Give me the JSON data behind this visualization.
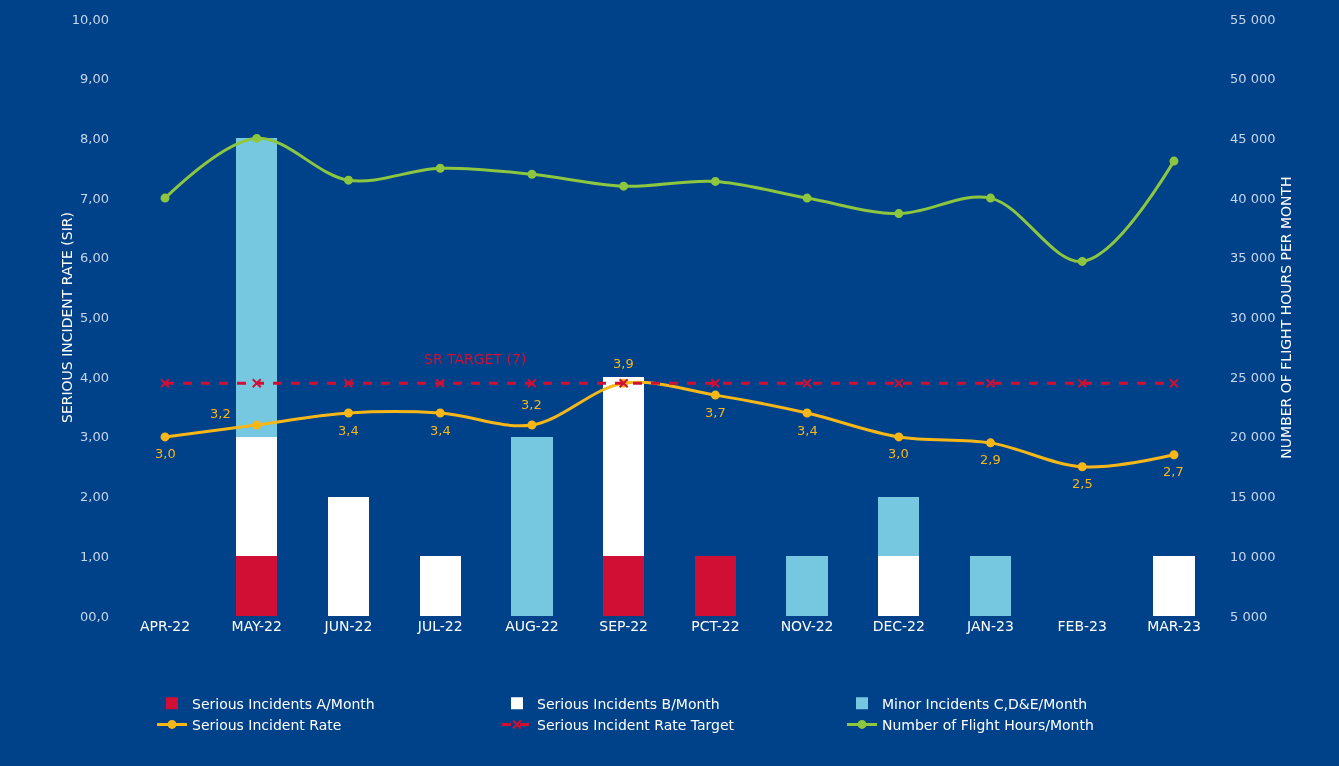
{
  "chart_data": {
    "type": "bar",
    "stacked": true,
    "categories": [
      "APR-22",
      "MAY-22",
      "JUN-22",
      "JUL-22",
      "AUG-22",
      "SEP-22",
      "PCT-22",
      "NOV-22",
      "DEC-22",
      "JAN-23",
      "FEB-23",
      "MAR-23"
    ],
    "ylabel": "SERIOUS INCIDENT RATE (SIR)",
    "y2label": "NUMBER OF FLIGHT HOURS PER MONTH",
    "ylim": [
      0,
      10
    ],
    "yticks": [
      {
        "value": 0,
        "label": "00,0"
      },
      {
        "value": 1,
        "label": "1,00"
      },
      {
        "value": 2,
        "label": "2,00"
      },
      {
        "value": 3,
        "label": "3,00"
      },
      {
        "value": 4,
        "label": "4,00"
      },
      {
        "value": 5,
        "label": "5,00"
      },
      {
        "value": 6,
        "label": "6,00"
      },
      {
        "value": 7,
        "label": "7,00"
      },
      {
        "value": 8,
        "label": "8,00"
      },
      {
        "value": 9,
        "label": "9,00"
      },
      {
        "value": 10,
        "label": "10,00"
      }
    ],
    "y2lim": [
      5000,
      55000
    ],
    "y2ticks": [
      {
        "value": 5000,
        "label": "5 000"
      },
      {
        "value": 10000,
        "label": "10 000"
      },
      {
        "value": 15000,
        "label": "15 000"
      },
      {
        "value": 20000,
        "label": "20 000"
      },
      {
        "value": 25000,
        "label": "25 000"
      },
      {
        "value": 30000,
        "label": "30 000"
      },
      {
        "value": 35000,
        "label": "35 000"
      },
      {
        "value": 40000,
        "label": "40 000"
      },
      {
        "value": 45000,
        "label": "45 000"
      },
      {
        "value": 50000,
        "label": "50 000"
      },
      {
        "value": 55000,
        "label": "55 000"
      }
    ],
    "grid": false,
    "legend": "bottom",
    "annotations": [
      {
        "text": "SR TARGET (7)",
        "x": "JUL-22",
        "y": 3.9
      }
    ],
    "series": [
      {
        "name": "Serious Incidents A/Month",
        "color": "#d10f35",
        "values": [
          null,
          1,
          null,
          null,
          null,
          1,
          1,
          null,
          null,
          null,
          null,
          null
        ]
      },
      {
        "name": "Serious Incidents B/Month",
        "color": "#ffffff",
        "values": [
          null,
          2,
          2,
          1,
          null,
          3,
          null,
          null,
          1,
          null,
          null,
          1
        ]
      },
      {
        "name": "Minor Incidents C,D&E/Month",
        "color": "#76c7e0",
        "values": [
          null,
          5,
          null,
          null,
          3,
          null,
          null,
          1,
          1,
          1,
          null,
          null
        ]
      },
      {
        "name": "Serious Incident Rate",
        "type": "line",
        "color": "#f7b718",
        "marker": "circle",
        "line_style": "solid",
        "value_labels": [
          "3,0",
          "3,2",
          "3,4",
          "3,4",
          "3,2",
          "3,9",
          "3,7",
          "3,4",
          "3,0",
          "2,9",
          "2,5",
          "2,7"
        ],
        "values": [
          3.0,
          3.2,
          3.4,
          3.4,
          3.2,
          3.9,
          3.7,
          3.4,
          3.0,
          2.9,
          2.5,
          2.7
        ]
      },
      {
        "name": "Serious Incident Rate Target",
        "type": "line",
        "color": "#d10f35",
        "marker": "cross",
        "line_style": "dashed",
        "values": [
          3.9,
          3.9,
          3.9,
          3.9,
          3.9,
          3.9,
          3.9,
          3.9,
          3.9,
          3.9,
          3.9,
          3.9
        ]
      },
      {
        "name": "Number of Flight Hours/Month",
        "type": "line",
        "axis": "y2",
        "color": "#8dc63f",
        "marker": "circle",
        "line_style": "solid",
        "values": [
          40000,
          45000,
          41500,
          42500,
          42000,
          41000,
          41400,
          40000,
          38700,
          40000,
          34700,
          43100
        ]
      }
    ]
  }
}
